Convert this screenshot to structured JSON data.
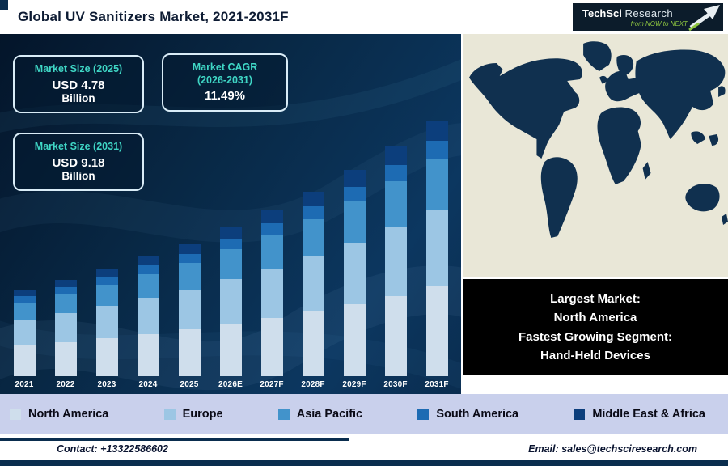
{
  "header": {
    "title": "Global UV Sanitizers Market, 2021-2031F",
    "logo": {
      "brand_tech": "TechSci",
      "brand_research": "Research",
      "tagline": "from NOW to NEXT"
    }
  },
  "info_boxes": [
    {
      "title": "Market Size (2025)",
      "value": "USD 4.78",
      "unit": "Billion"
    },
    {
      "title": "Market CAGR",
      "title_line2": "(2026-2031)",
      "value": "11.49%"
    },
    {
      "title": "Market Size (2031)",
      "value": "USD 9.18",
      "unit": "Billion"
    }
  ],
  "chart_data": {
    "type": "bar",
    "stacked": true,
    "title": "Global UV Sanitizers Market, 2021-2031F",
    "xlabel": "",
    "ylabel": "",
    "ylim": [
      0,
      9.5
    ],
    "grid": false,
    "legend_position": "bottom",
    "categories": [
      "2021",
      "2022",
      "2023",
      "2024",
      "2025",
      "2026E",
      "2027F",
      "2028F",
      "2029F",
      "2030F",
      "2031F"
    ],
    "totals": [
      3.1,
      3.46,
      3.86,
      4.3,
      4.78,
      5.33,
      5.94,
      6.62,
      7.38,
      8.23,
      9.18
    ],
    "series": [
      {
        "name": "North America",
        "color": "#cfdeec",
        "values": [
          1.09,
          1.21,
          1.35,
          1.51,
          1.67,
          1.87,
          2.08,
          2.32,
          2.58,
          2.88,
          3.21
        ]
      },
      {
        "name": "Europe",
        "color": "#9cc6e4",
        "values": [
          0.93,
          1.04,
          1.16,
          1.29,
          1.43,
          1.6,
          1.78,
          1.99,
          2.21,
          2.47,
          2.75
        ]
      },
      {
        "name": "Asia Pacific",
        "color": "#4293cb",
        "values": [
          0.62,
          0.69,
          0.77,
          0.86,
          0.96,
          1.07,
          1.19,
          1.32,
          1.48,
          1.65,
          1.84
        ]
      },
      {
        "name": "South America",
        "color": "#1d6bb3",
        "values": [
          0.22,
          0.24,
          0.27,
          0.3,
          0.33,
          0.37,
          0.42,
          0.46,
          0.52,
          0.58,
          0.64
        ]
      },
      {
        "name": "Middle East & Africa",
        "color": "#0c3e7c",
        "values": [
          0.25,
          0.28,
          0.31,
          0.34,
          0.38,
          0.43,
          0.48,
          0.53,
          0.59,
          0.66,
          0.73
        ]
      }
    ]
  },
  "map_panel": {
    "callout": {
      "lines": [
        "Largest Market:",
        "North America",
        "Fastest Growing Segment:",
        "Hand-Held Devices"
      ]
    }
  },
  "footer": {
    "contact": "Contact: +13322586602",
    "email": "Email: sales@techsciresearch.com"
  },
  "colors": {
    "panel_navy": "#0a2d4e",
    "accent_turquoise": "#3fd6c5",
    "logo_green": "#8fc640",
    "legend_strip": "#c9d0ec",
    "map_land": "#10304f",
    "map_ocean": "#e9e7d7"
  }
}
